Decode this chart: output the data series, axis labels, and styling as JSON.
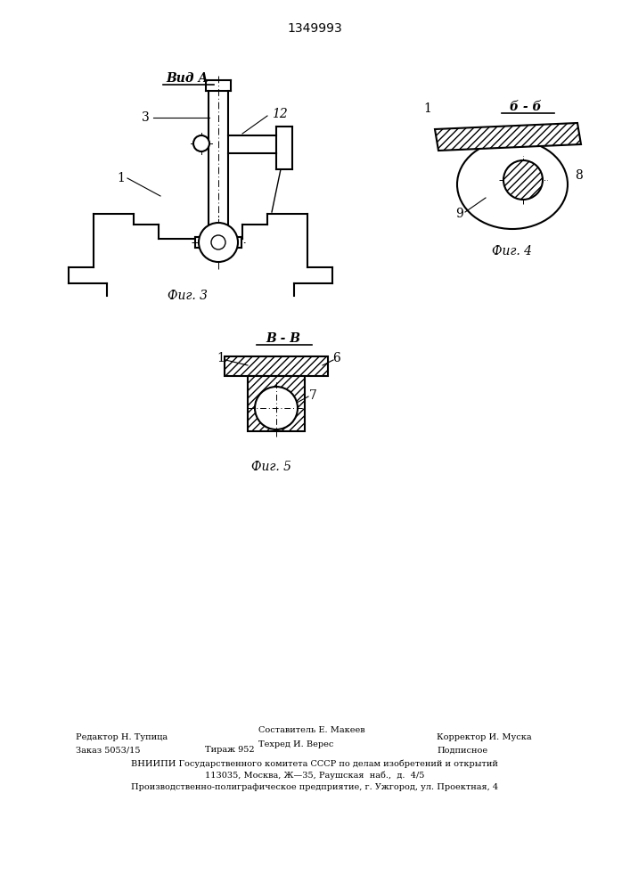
{
  "title": "1349993",
  "background_color": "#ffffff",
  "line_color": "#000000",
  "fig3_label": "Фиг. 3",
  "fig4_label": "Фиг. 4",
  "fig5_label": "Фиг. 5",
  "vid_a_label": "Вид А",
  "b_b_label": "б - б",
  "v_v_label": "в - в"
}
